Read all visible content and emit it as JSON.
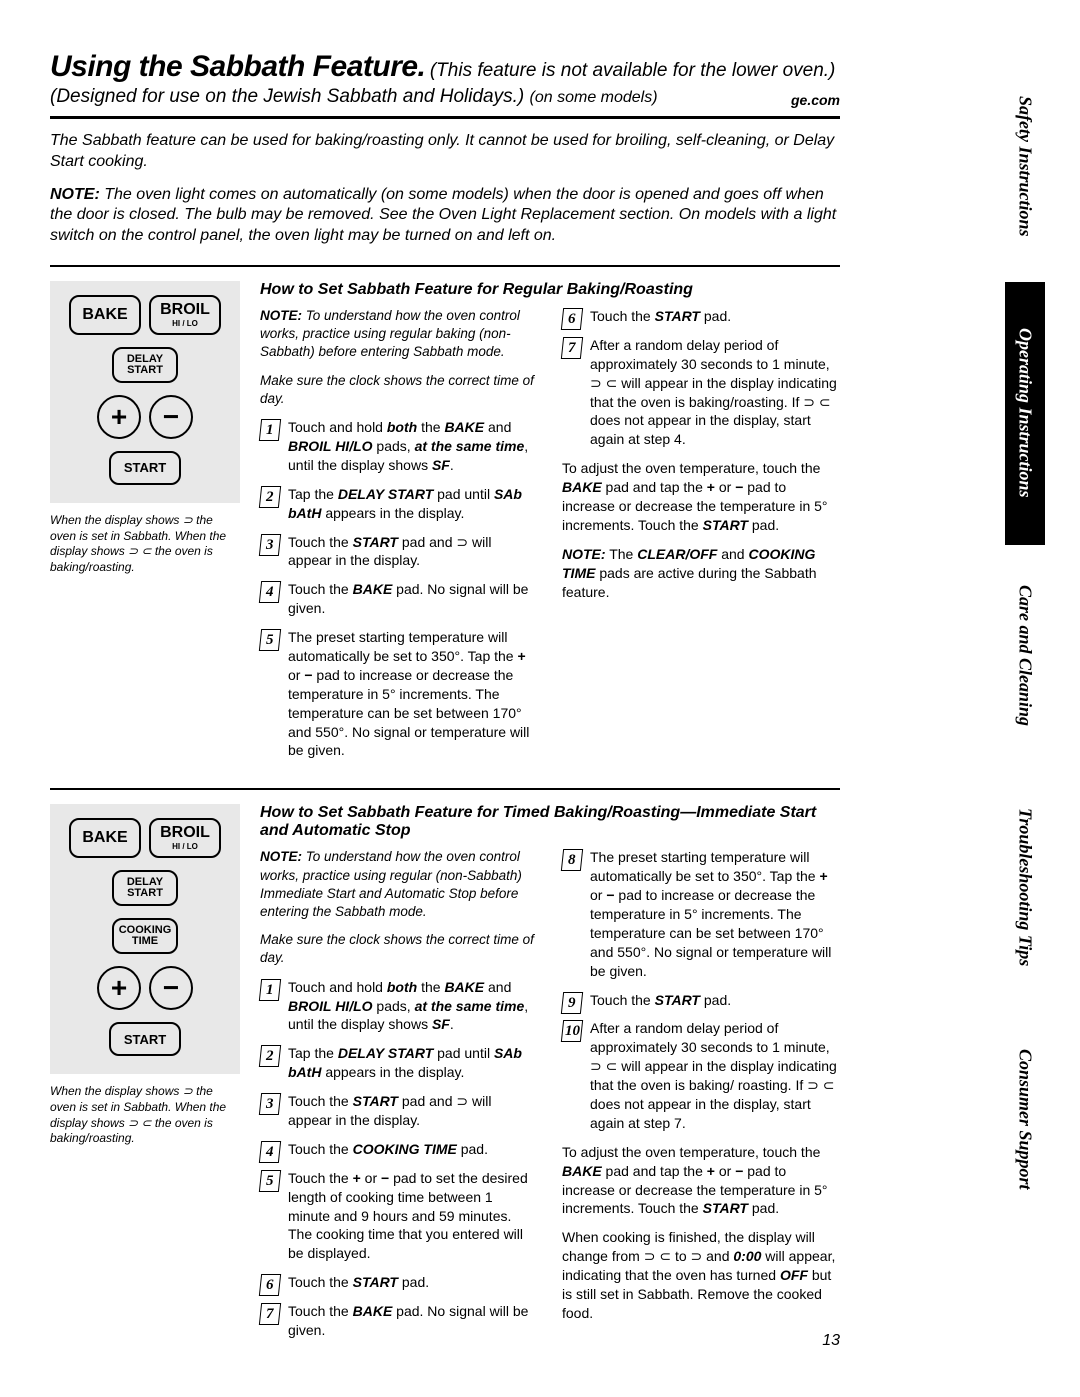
{
  "tabs": {
    "safety": "Safety Instructions",
    "operating": "Operating Instructions",
    "care": "Care and Cleaning",
    "trouble": "Troubleshooting Tips",
    "consumer": "Consumer Support"
  },
  "header": {
    "title_main": "Using the Sabbath Feature.",
    "title_sub1": "(This feature is not available for the lower oven.)",
    "title_sub2": "(Designed for use on the Jewish Sabbath and Holidays.)",
    "title_sub2_small": "(on some models)",
    "site": "ge.com"
  },
  "intro": "The Sabbath feature can be used for baking/roasting only. It cannot be used for broiling, self-cleaning, or Delay Start cooking.",
  "note_label": "NOTE:",
  "note_text": " The oven light comes on automatically (on some models) when the door is opened and goes off when the door is closed. The bulb may be removed. See the Oven Light Replacement section. On models with a light switch on the control panel, the oven light may be turned on and left on.",
  "section1": {
    "heading": "How to Set Sabbath Feature for Regular Baking/Roasting",
    "lead_note_label": "NOTE:",
    "lead_note": " To understand how the oven control works, practice using regular baking (non-Sabbath) before entering Sabbath mode.",
    "clock_note": "Make sure the clock shows the correct time of day.",
    "steps_left": [
      "Touch and hold <b><i>both</i></b> the <b><i>BAKE</i></b> and <b><i>BROIL HI/LO</i></b> pads, <b><i>at the same time</i></b>, until the display shows <b><i>SF</i></b>.",
      "Tap the <b><i>DELAY START</i></b> pad until <b><i>SAb bAtH</i></b> appears in the display.",
      "Touch the <b><i>START</i></b> pad and ⊃ will appear in the display.",
      "Touch the <b><i>BAKE</i></b> pad. No signal will be given.",
      "The preset starting temperature will automatically be set to 350°. Tap the <b>+</b> or <b>−</b> pad to increase or decrease the temperature in 5° increments. The temperature can be set between 170° and 550°. No signal or temperature will be given."
    ],
    "steps_right": [
      "Touch the <b><i>START</i></b> pad.",
      "After a random delay period of approximately 30 seconds to 1 minute, ⊃ ⊂ will appear in the display indicating that the oven is baking/roasting. If ⊃ ⊂ does not appear in the display, start again at step 4."
    ],
    "adjust": "To adjust the oven temperature, touch the <b><i>BAKE</i></b> pad and tap the <b>+</b> or <b>−</b> pad to increase or decrease the temperature in 5° increments. Touch the <b><i>START</i></b> pad.",
    "tail_note": "<b><i>NOTE:</i></b> The <b><i>CLEAR/OFF</i></b> and <b><i>COOKING TIME</i></b> pads are active during the Sabbath feature."
  },
  "section2": {
    "heading": "How to Set Sabbath Feature for Timed Baking/Roasting—Immediate Start and Automatic Stop",
    "lead_note_label": "NOTE:",
    "lead_note": " To understand how the oven control works, practice using regular (non-Sabbath) Immediate Start and Automatic Stop before entering the Sabbath mode.",
    "clock_note": "Make sure the clock shows the correct time of day.",
    "steps_left": [
      "Touch and hold <b><i>both</i></b> the <b><i>BAKE</i></b> and <b><i>BROIL HI/LO</i></b> pads, <b><i>at the same time</i></b>, until the display shows <b><i>SF</i></b>.",
      "Tap the <b><i>DELAY START</i></b> pad until <b><i>SAb bAtH</i></b> appears in the display.",
      "Touch the <b><i>START</i></b> pad and ⊃ will appear in the display.",
      "Touch the <b><i>COOKING TIME</i></b> pad.",
      "Touch the <b>+</b> or <b>−</b> pad to set the desired length of cooking time between 1 minute and 9 hours and 59 minutes. The cooking time that you entered will be displayed.",
      "Touch the <b><i>START</i></b> pad.",
      "Touch the <b><i>BAKE</i></b> pad. No signal will be given."
    ],
    "steps_right": [
      "The preset starting temperature will automatically be set to 350°. Tap the <b>+</b> or <b>−</b> pad to increase or decrease the temperature in 5° increments. The temperature can be set between 170° and 550°. No signal or temperature will be given.",
      "Touch the <b><i>START</i></b> pad.",
      "After a random delay period of approximately 30 seconds to 1 minute, ⊃ ⊂ will appear in the display indicating that the oven is baking/ roasting. If ⊃ ⊂ does not appear in the display, start again at step 7."
    ],
    "adjust": "To adjust the oven temperature, touch the <b><i>BAKE</i></b> pad and tap the <b>+</b> or <b>−</b> pad to increase or decrease the temperature in 5° increments. Touch the <b><i>START</i></b> pad.",
    "finish": "When cooking is finished, the display will change from ⊃ ⊂ to ⊃ and <b><i>0:00</i></b> will appear, indicating that the oven has turned <b><i>OFF</i></b> but is still set in Sabbath. Remove the cooked food."
  },
  "panel": {
    "bake": "BAKE",
    "broil": "BROIL",
    "broil_sub": "HI / LO",
    "delay1": "DELAY",
    "delay2": "START",
    "cook1": "COOKING",
    "cook2": "TIME",
    "plus": "+",
    "minus": "−",
    "start": "START",
    "caption": "When the display shows ⊃ the oven is set in Sabbath. When the display shows ⊃ ⊂ the oven is baking/roasting."
  },
  "page_num": "13"
}
